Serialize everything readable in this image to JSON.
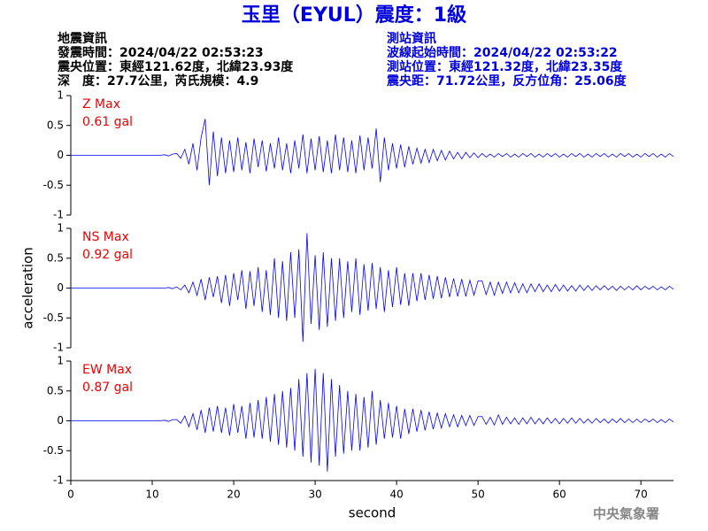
{
  "header": {
    "title": "玉里（EYUL）震度：1級",
    "left": [
      "地震資訊",
      "發震時間：2024/04/22 02:53:23",
      "震央位置：東經121.62度，北緯23.93度",
      "深　度：27.7公里，芮氏規模：4.9"
    ],
    "right": [
      "測站資訊",
      "波線起始時間：2024/04/22 02:53:22",
      "測站位置：東經121.32度，北緯23.35度",
      "震央距：71.72公里，反方位角：25.06度"
    ],
    "footer": "中央氣象署"
  },
  "chart_data": [
    {
      "type": "line",
      "label": "Z Max",
      "max_value": "0.61 gal",
      "color": "#0000ff",
      "label_color": "#ee0000",
      "xlim": [
        0,
        74
      ],
      "ylim": [
        -1,
        1
      ],
      "yticks": [
        -1,
        -0.5,
        0,
        0.5,
        1
      ],
      "x": [
        0,
        0.5,
        1,
        1.5,
        2,
        2.5,
        3,
        3.5,
        4,
        4.5,
        5,
        5.5,
        6,
        6.5,
        7,
        7.5,
        8,
        8.5,
        9,
        9.5,
        10,
        10.5,
        11,
        11.5,
        12,
        12.5,
        13,
        13.5,
        14,
        14.5,
        15,
        15.5,
        16,
        16.5,
        17,
        17.5,
        18,
        18.5,
        19,
        19.5,
        20,
        20.5,
        21,
        21.5,
        22,
        22.5,
        23,
        23.5,
        24,
        24.5,
        25,
        25.5,
        26,
        26.5,
        27,
        27.5,
        28,
        28.5,
        29,
        29.5,
        30,
        30.5,
        31,
        31.5,
        32,
        32.5,
        33,
        33.5,
        34,
        34.5,
        35,
        35.5,
        36,
        36.5,
        37,
        37.5,
        38,
        38.5,
        39,
        39.5,
        40,
        40.5,
        41,
        41.5,
        42,
        42.5,
        43,
        43.5,
        44,
        44.5,
        45,
        45.5,
        46,
        46.5,
        47,
        47.5,
        48,
        48.5,
        49,
        49.5,
        50,
        50.5,
        51,
        51.5,
        52,
        52.5,
        53,
        53.5,
        54,
        54.5,
        55,
        55.5,
        56,
        56.5,
        57,
        57.5,
        58,
        58.5,
        59,
        59.5,
        60,
        60.5,
        61,
        61.5,
        62,
        62.5,
        63,
        63.5,
        64,
        64.5,
        65,
        65.5,
        66,
        66.5,
        67,
        67.5,
        68,
        68.5,
        69,
        69.5,
        70,
        70.5,
        71,
        71.5,
        72,
        72.5,
        73,
        73.5,
        74
      ],
      "values": [
        0,
        0,
        0,
        0,
        0,
        0,
        0,
        0,
        0,
        0,
        0,
        0,
        0,
        0,
        0,
        0,
        0,
        0,
        0,
        0,
        0,
        0,
        0,
        0.01,
        -0.01,
        0.02,
        0.03,
        -0.05,
        0.1,
        -0.15,
        0.2,
        -0.25,
        0.3,
        0.61,
        -0.5,
        0.4,
        -0.35,
        0.3,
        -0.3,
        0.25,
        -0.28,
        0.3,
        -0.25,
        0.22,
        -0.3,
        0.28,
        -0.2,
        0.25,
        -0.27,
        0.2,
        -0.22,
        0.3,
        -0.25,
        0.2,
        -0.3,
        0.25,
        -0.22,
        0.35,
        -0.3,
        0.28,
        -0.25,
        0.32,
        -0.28,
        0.25,
        -0.3,
        0.35,
        -0.25,
        0.3,
        -0.28,
        0.25,
        -0.3,
        0.33,
        -0.25,
        0.3,
        -0.22,
        0.45,
        -0.45,
        0.3,
        -0.25,
        0.2,
        -0.22,
        0.18,
        -0.2,
        0.15,
        -0.15,
        0.12,
        -0.13,
        0.1,
        -0.12,
        0.1,
        -0.09,
        0.08,
        -0.08,
        0.07,
        -0.06,
        0.05,
        -0.06,
        0.05,
        -0.04,
        0.04,
        -0.04,
        0.03,
        -0.03,
        0.02,
        -0.03,
        0.03,
        -0.02,
        0.03,
        -0.03,
        0.02,
        -0.03,
        0.03,
        -0.02,
        0.03,
        -0.03,
        0.02,
        -0.03,
        0.03,
        -0.02,
        0.03,
        -0.03,
        0.02,
        -0.03,
        0.03,
        -0.02,
        0.03,
        -0.03,
        0.02,
        -0.03,
        0.03,
        -0.02,
        0.03,
        -0.03,
        0.02,
        -0.03,
        0.03,
        -0.02,
        0.03,
        -0.03,
        0.02,
        -0.03,
        0.03,
        -0.02,
        0.03,
        -0.03,
        0.02,
        -0.03,
        0.03,
        -0.02
      ]
    },
    {
      "type": "line",
      "label": "NS Max",
      "max_value": "0.92 gal",
      "color": "#0000ff",
      "label_color": "#ee0000",
      "ylabel": "acceleration",
      "xlim": [
        0,
        74
      ],
      "ylim": [
        -1,
        1
      ],
      "yticks": [
        -1,
        -0.5,
        0,
        0.5,
        1
      ],
      "x": [
        0,
        0.5,
        1,
        1.5,
        2,
        2.5,
        3,
        3.5,
        4,
        4.5,
        5,
        5.5,
        6,
        6.5,
        7,
        7.5,
        8,
        8.5,
        9,
        9.5,
        10,
        10.5,
        11,
        11.5,
        12,
        12.5,
        13,
        13.5,
        14,
        14.5,
        15,
        15.5,
        16,
        16.5,
        17,
        17.5,
        18,
        18.5,
        19,
        19.5,
        20,
        20.5,
        21,
        21.5,
        22,
        22.5,
        23,
        23.5,
        24,
        24.5,
        25,
        25.5,
        26,
        26.5,
        27,
        27.5,
        28,
        28.5,
        29,
        29.5,
        30,
        30.5,
        31,
        31.5,
        32,
        32.5,
        33,
        33.5,
        34,
        34.5,
        35,
        35.5,
        36,
        36.5,
        37,
        37.5,
        38,
        38.5,
        39,
        39.5,
        40,
        40.5,
        41,
        41.5,
        42,
        42.5,
        43,
        43.5,
        44,
        44.5,
        45,
        45.5,
        46,
        46.5,
        47,
        47.5,
        48,
        48.5,
        49,
        49.5,
        50,
        50.5,
        51,
        51.5,
        52,
        52.5,
        53,
        53.5,
        54,
        54.5,
        55,
        55.5,
        56,
        56.5,
        57,
        57.5,
        58,
        58.5,
        59,
        59.5,
        60,
        60.5,
        61,
        61.5,
        62,
        62.5,
        63,
        63.5,
        64,
        64.5,
        65,
        65.5,
        66,
        66.5,
        67,
        67.5,
        68,
        68.5,
        69,
        69.5,
        70,
        70.5,
        71,
        71.5,
        72,
        72.5,
        73,
        73.5,
        74
      ],
      "values": [
        0,
        0,
        0,
        0,
        0,
        0,
        0,
        0,
        0,
        0,
        0,
        0,
        0,
        0,
        0,
        0,
        0,
        0,
        0,
        0,
        0,
        0,
        0,
        0,
        0.01,
        -0.01,
        0.02,
        -0.03,
        0.05,
        -0.08,
        0.1,
        -0.12,
        0.15,
        -0.2,
        0.18,
        -0.15,
        0.2,
        -0.25,
        0.22,
        -0.3,
        0.25,
        -0.2,
        0.3,
        -0.35,
        0.28,
        -0.3,
        0.35,
        -0.4,
        0.3,
        -0.45,
        0.5,
        -0.5,
        0.45,
        -0.55,
        0.6,
        -0.5,
        0.65,
        -0.9,
        0.92,
        -0.6,
        0.55,
        -0.7,
        0.6,
        -0.65,
        0.5,
        -0.55,
        0.5,
        -0.5,
        0.45,
        -0.4,
        0.5,
        -0.45,
        0.4,
        -0.38,
        0.42,
        -0.35,
        0.35,
        -0.4,
        0.3,
        -0.32,
        0.35,
        -0.28,
        0.25,
        -0.3,
        0.25,
        -0.22,
        0.25,
        -0.2,
        0.22,
        -0.18,
        0.2,
        -0.17,
        0.18,
        -0.15,
        0.16,
        -0.14,
        0.15,
        -0.14,
        0.13,
        -0.12,
        0.12,
        0.12,
        -0.11,
        0.1,
        -0.12,
        0.1,
        -0.09,
        0.1,
        -0.08,
        0.09,
        -0.08,
        0.07,
        -0.08,
        0.07,
        -0.06,
        0.07,
        -0.06,
        0.05,
        -0.06,
        0.06,
        -0.05,
        0.05,
        -0.05,
        0.04,
        -0.05,
        0.05,
        -0.04,
        0.04,
        -0.04,
        0.04,
        -0.03,
        0.04,
        -0.03,
        0.03,
        -0.04,
        0.03,
        -0.03,
        0.03,
        -0.03,
        0.04,
        -0.03,
        0.03,
        -0.02,
        0.03,
        -0.03,
        0.02,
        -0.03,
        0.03,
        -0.02
      ]
    },
    {
      "type": "line",
      "label": "EW Max",
      "max_value": "0.87 gal",
      "color": "#0000ff",
      "label_color": "#ee0000",
      "xlabel": "second",
      "xlim": [
        0,
        74
      ],
      "ylim": [
        -1,
        1
      ],
      "yticks": [
        -1,
        -0.5,
        0,
        0.5,
        1
      ],
      "xticks": [
        0,
        10,
        20,
        30,
        40,
        50,
        60,
        70
      ],
      "x": [
        0,
        0.5,
        1,
        1.5,
        2,
        2.5,
        3,
        3.5,
        4,
        4.5,
        5,
        5.5,
        6,
        6.5,
        7,
        7.5,
        8,
        8.5,
        9,
        9.5,
        10,
        10.5,
        11,
        11.5,
        12,
        12.5,
        13,
        13.5,
        14,
        14.5,
        15,
        15.5,
        16,
        16.5,
        17,
        17.5,
        18,
        18.5,
        19,
        19.5,
        20,
        20.5,
        21,
        21.5,
        22,
        22.5,
        23,
        23.5,
        24,
        24.5,
        25,
        25.5,
        26,
        26.5,
        27,
        27.5,
        28,
        28.5,
        29,
        29.5,
        30,
        30.5,
        31,
        31.5,
        32,
        32.5,
        33,
        33.5,
        34,
        34.5,
        35,
        35.5,
        36,
        36.5,
        37,
        37.5,
        38,
        38.5,
        39,
        39.5,
        40,
        40.5,
        41,
        41.5,
        42,
        42.5,
        43,
        43.5,
        44,
        44.5,
        45,
        45.5,
        46,
        46.5,
        47,
        47.5,
        48,
        48.5,
        49,
        49.5,
        50,
        50.5,
        51,
        51.5,
        52,
        52.5,
        53,
        53.5,
        54,
        54.5,
        55,
        55.5,
        56,
        56.5,
        57,
        57.5,
        58,
        58.5,
        59,
        59.5,
        60,
        60.5,
        61,
        61.5,
        62,
        62.5,
        63,
        63.5,
        64,
        64.5,
        65,
        65.5,
        66,
        66.5,
        67,
        67.5,
        68,
        68.5,
        69,
        69.5,
        70,
        70.5,
        71,
        71.5,
        72,
        72.5,
        73,
        73.5,
        74
      ],
      "values": [
        0,
        0,
        0,
        0,
        0,
        0,
        0,
        0,
        0,
        0,
        0,
        0,
        0,
        0,
        0,
        0,
        0,
        0,
        0,
        0,
        0,
        0,
        0,
        0.01,
        -0.01,
        0.02,
        0.02,
        -0.04,
        0.08,
        -0.1,
        0.12,
        -0.15,
        0.18,
        -0.2,
        0.22,
        -0.18,
        0.25,
        -0.2,
        0.22,
        -0.25,
        0.28,
        -0.2,
        0.25,
        -0.3,
        0.3,
        -0.28,
        0.35,
        -0.3,
        0.4,
        -0.35,
        0.45,
        -0.4,
        0.5,
        -0.45,
        0.55,
        -0.5,
        0.7,
        -0.6,
        0.8,
        -0.7,
        0.87,
        -0.75,
        0.8,
        -0.85,
        0.7,
        -0.6,
        0.6,
        -0.55,
        0.5,
        -0.5,
        0.45,
        -0.5,
        0.4,
        -0.45,
        0.5,
        -0.4,
        0.35,
        -0.3,
        0.3,
        -0.28,
        0.25,
        -0.3,
        0.2,
        -0.22,
        0.2,
        -0.18,
        0.18,
        -0.16,
        0.15,
        -0.14,
        0.13,
        -0.12,
        0.12,
        -0.1,
        0.1,
        -0.1,
        0.09,
        -0.08,
        0.09,
        -0.08,
        0.07,
        0.07,
        -0.06,
        0.06,
        -0.07,
        0.1,
        -0.06,
        0.06,
        -0.05,
        0.05,
        -0.06,
        0.05,
        -0.05,
        0.06,
        -0.05,
        0.04,
        -0.05,
        0.05,
        -0.04,
        0.04,
        -0.05,
        0.04,
        -0.04,
        0.05,
        -0.04,
        0.04,
        -0.04,
        0.03,
        -0.04,
        0.04,
        -0.03,
        0.03,
        -0.04,
        0.03,
        -0.03,
        0.04,
        -0.03,
        0.03,
        -0.03,
        0.03,
        -0.03,
        0.03,
        -0.02,
        0.03,
        -0.03,
        0.02,
        -0.03,
        0.03,
        -0.02
      ]
    }
  ]
}
